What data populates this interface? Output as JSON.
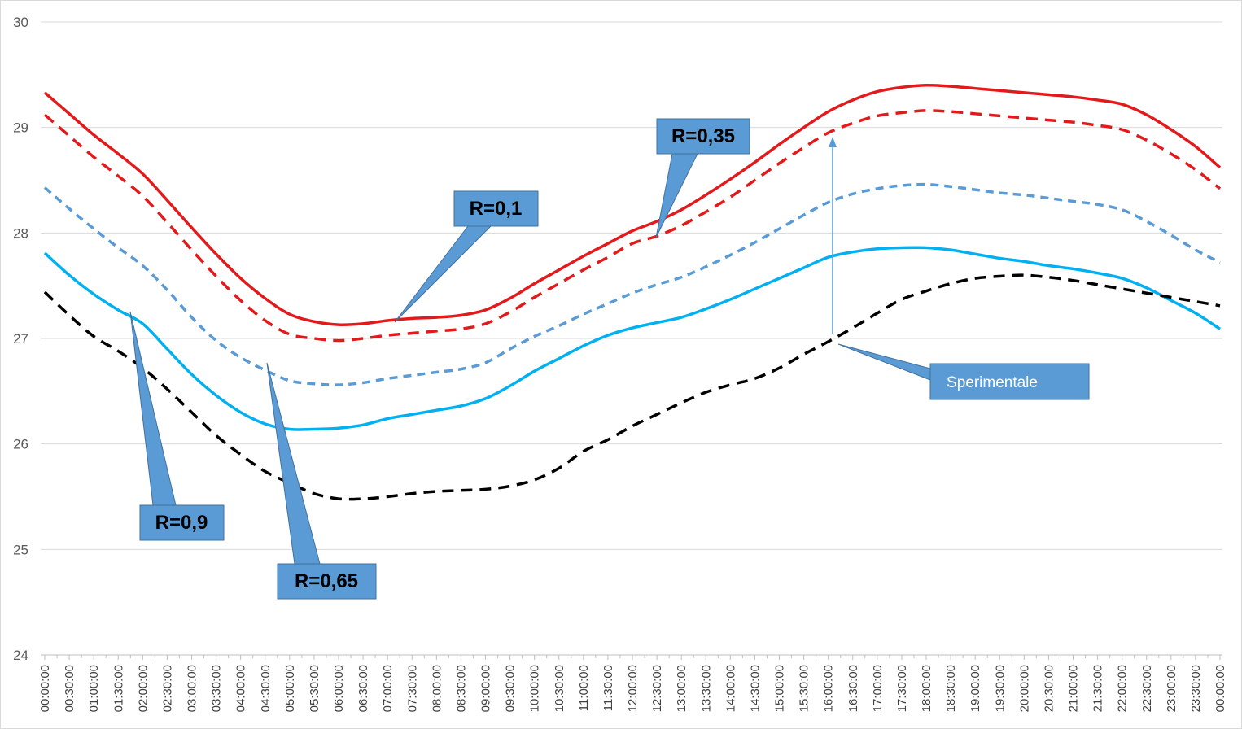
{
  "chart_data": {
    "type": "line",
    "ylim": [
      24,
      30
    ],
    "yticks": [
      "24",
      "25",
      "26",
      "27",
      "28",
      "29",
      "30"
    ],
    "x": [
      "00:00:00",
      "00:30:00",
      "01:00:00",
      "01:30:00",
      "02:00:00",
      "02:30:00",
      "03:00:00",
      "03:30:00",
      "04:00:00",
      "04:30:00",
      "05:00:00",
      "05:30:00",
      "06:00:00",
      "06:30:00",
      "07:00:00",
      "07:30:00",
      "08:00:00",
      "08:30:00",
      "09:00:00",
      "09:30:00",
      "10:00:00",
      "10:30:00",
      "11:00:00",
      "11:30:00",
      "12:00:00",
      "12:30:00",
      "13:00:00",
      "13:30:00",
      "14:00:00",
      "14:30:00",
      "15:00:00",
      "15:30:00",
      "16:00:00",
      "16:30:00",
      "17:00:00",
      "17:30:00",
      "18:00:00",
      "18:30:00",
      "19:00:00",
      "19:30:00",
      "20:00:00",
      "20:30:00",
      "21:00:00",
      "21:30:00",
      "22:00:00",
      "22:30:00",
      "23:00:00",
      "23:30:00",
      "00:00:00"
    ],
    "grid": true,
    "series": [
      {
        "color": "#e31a1c",
        "dash": "solid",
        "values": [
          29.33,
          29.13,
          28.93,
          28.75,
          28.56,
          28.31,
          28.05,
          27.8,
          27.57,
          27.38,
          27.23,
          27.16,
          27.13,
          27.14,
          27.17,
          27.19,
          27.2,
          27.22,
          27.27,
          27.38,
          27.52,
          27.65,
          27.78,
          27.9,
          28.02,
          28.11,
          28.22,
          28.36,
          28.51,
          28.67,
          28.84,
          29.0,
          29.15,
          29.26,
          29.34,
          29.38,
          29.4,
          29.39,
          29.37,
          29.35,
          29.33,
          29.31,
          29.29,
          29.26,
          29.22,
          29.12,
          28.98,
          28.82,
          28.62
        ]
      },
      {
        "color": "#e31a1c",
        "dash": "dashed",
        "values": [
          29.12,
          28.92,
          28.72,
          28.54,
          28.35,
          28.1,
          27.84,
          27.59,
          27.36,
          27.17,
          27.04,
          27.0,
          26.98,
          27.0,
          27.03,
          27.05,
          27.07,
          27.09,
          27.14,
          27.25,
          27.39,
          27.52,
          27.65,
          27.77,
          27.9,
          27.97,
          28.07,
          28.2,
          28.34,
          28.5,
          28.66,
          28.81,
          28.95,
          29.04,
          29.11,
          29.14,
          29.16,
          29.15,
          29.13,
          29.11,
          29.09,
          29.07,
          29.05,
          29.02,
          28.98,
          28.88,
          28.75,
          28.6,
          28.42
        ]
      },
      {
        "color": "#5b9bd5",
        "dash": "dashed",
        "values": [
          28.43,
          28.23,
          28.04,
          27.86,
          27.69,
          27.46,
          27.2,
          26.98,
          26.82,
          26.7,
          26.6,
          26.57,
          26.56,
          26.58,
          26.62,
          26.65,
          26.68,
          26.71,
          26.77,
          26.9,
          27.02,
          27.12,
          27.23,
          27.33,
          27.43,
          27.51,
          27.58,
          27.68,
          27.79,
          27.91,
          28.04,
          28.17,
          28.29,
          28.37,
          28.42,
          28.45,
          28.46,
          28.44,
          28.41,
          28.38,
          28.36,
          28.33,
          28.3,
          28.27,
          28.22,
          28.11,
          27.98,
          27.84,
          27.72
        ]
      },
      {
        "color": "#00b0f0",
        "dash": "solid",
        "values": [
          27.81,
          27.6,
          27.42,
          27.27,
          27.14,
          26.9,
          26.66,
          26.46,
          26.3,
          26.19,
          26.14,
          26.14,
          26.15,
          26.18,
          26.24,
          26.28,
          26.32,
          26.36,
          26.43,
          26.55,
          26.69,
          26.81,
          26.93,
          27.03,
          27.1,
          27.15,
          27.2,
          27.28,
          27.37,
          27.47,
          27.57,
          27.67,
          27.77,
          27.82,
          27.85,
          27.86,
          27.86,
          27.84,
          27.8,
          27.76,
          27.73,
          27.69,
          27.66,
          27.62,
          27.57,
          27.48,
          27.36,
          27.24,
          27.09
        ]
      },
      {
        "color": "#000000",
        "dash": "dashed",
        "values": [
          27.44,
          27.22,
          27.02,
          26.88,
          26.72,
          26.52,
          26.3,
          26.08,
          25.9,
          25.74,
          25.63,
          25.53,
          25.48,
          25.48,
          25.5,
          25.53,
          25.55,
          25.56,
          25.57,
          25.6,
          25.66,
          25.77,
          25.93,
          26.04,
          26.17,
          26.28,
          26.39,
          26.49,
          26.56,
          26.62,
          26.72,
          26.85,
          26.97,
          27.1,
          27.24,
          27.37,
          27.45,
          27.52,
          27.57,
          27.59,
          27.6,
          27.58,
          27.55,
          27.51,
          27.47,
          27.43,
          27.39,
          27.35,
          27.31
        ]
      }
    ],
    "annotations": [
      {
        "text": "R=0,1"
      },
      {
        "text": "R=0,35"
      },
      {
        "text": "R=0,9"
      },
      {
        "text": "R=0,65"
      },
      {
        "text": "Sperimentale"
      }
    ]
  }
}
